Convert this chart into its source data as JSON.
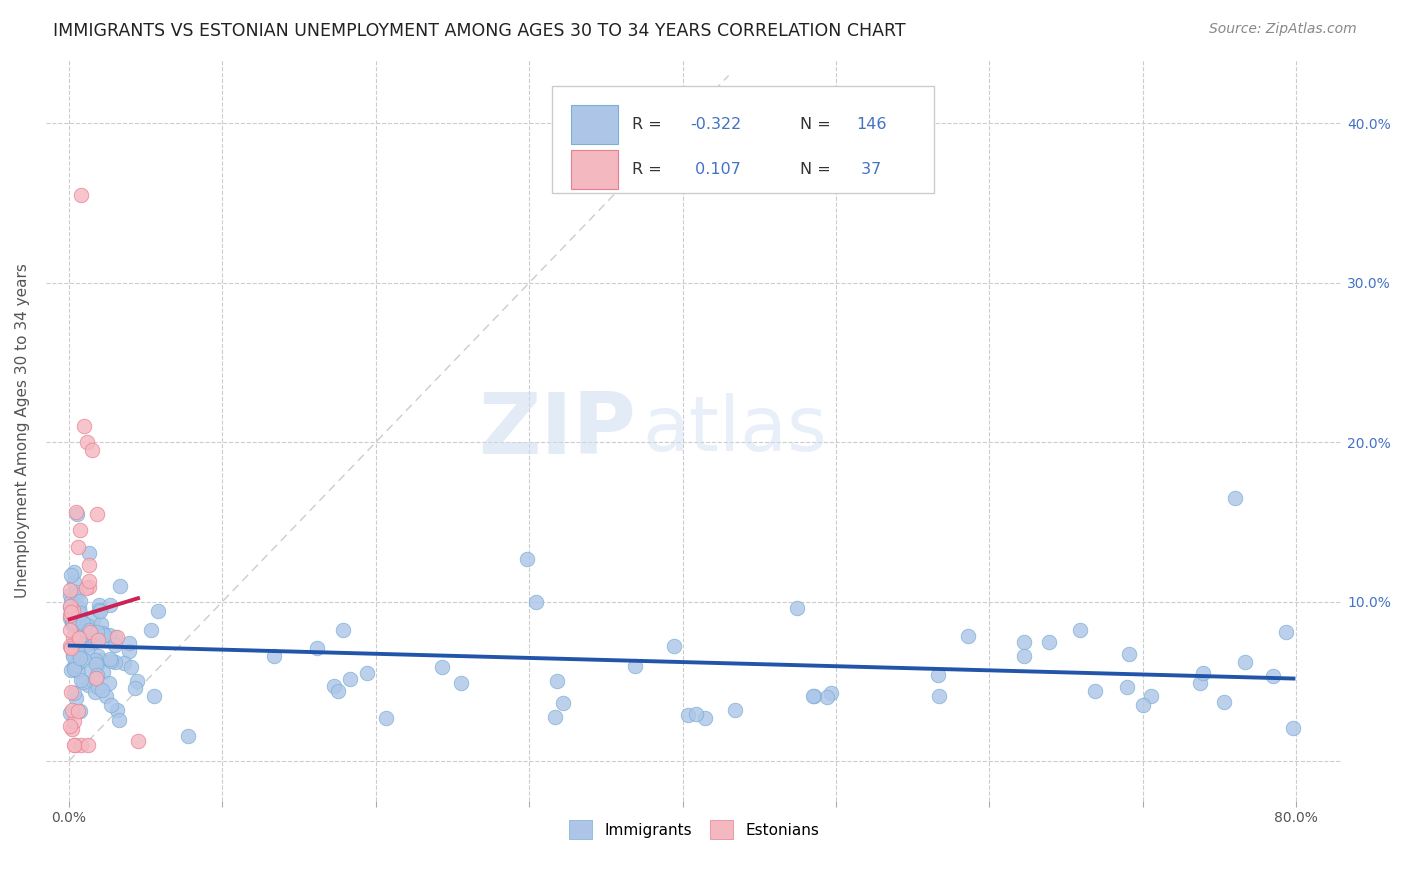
{
  "title": "IMMIGRANTS VS ESTONIAN UNEMPLOYMENT AMONG AGES 30 TO 34 YEARS CORRELATION CHART",
  "source": "Source: ZipAtlas.com",
  "ylabel": "Unemployment Among Ages 30 to 34 years",
  "watermark_zip": "ZIP",
  "watermark_atlas": "atlas",
  "xlim": [
    -0.015,
    0.83
  ],
  "ylim": [
    -0.025,
    0.44
  ],
  "xtick_positions": [
    0.0,
    0.1,
    0.2,
    0.3,
    0.4,
    0.5,
    0.6,
    0.7,
    0.8
  ],
  "xticklabels": [
    "0.0%",
    "",
    "",
    "",
    "",
    "",
    "",
    "",
    "80.0%"
  ],
  "ytick_positions": [
    0.0,
    0.1,
    0.2,
    0.3,
    0.4
  ],
  "yticklabels_right": [
    "",
    "10.0%",
    "20.0%",
    "30.0%",
    "40.0%"
  ],
  "immigrant_color": "#adc6e8",
  "immigrant_edge": "#7bafd4",
  "estonian_color": "#f4b8c1",
  "estonian_edge": "#e87f8f",
  "trend_immigrant_color": "#2255aa",
  "trend_estonian_color": "#cc2255",
  "diagonal_color": "#cccccc",
  "legend_immigrant_label": "Immigrants",
  "legend_estonian_label": "Estonians",
  "R_immigrant": -0.322,
  "N_immigrant": 146,
  "R_estonian": 0.107,
  "N_estonian": 37,
  "grid_color": "#cccccc",
  "background_color": "#ffffff",
  "title_fontsize": 12.5,
  "source_fontsize": 10,
  "label_fontsize": 11,
  "tick_color": "#555555",
  "right_tick_color": "#4472c4",
  "marker_size": 110,
  "seed": 99
}
